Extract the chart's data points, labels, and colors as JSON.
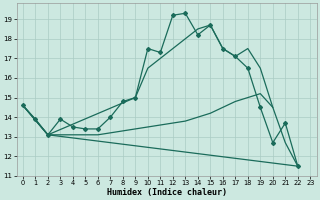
{
  "xlabel": "Humidex (Indice chaleur)",
  "background_color": "#cce8e0",
  "grid_color": "#aaccc4",
  "line_color": "#1a6b5a",
  "xlim": [
    -0.5,
    23.5
  ],
  "ylim": [
    11,
    19.8
  ],
  "xticks": [
    0,
    1,
    2,
    3,
    4,
    5,
    6,
    7,
    8,
    9,
    10,
    11,
    12,
    13,
    14,
    15,
    16,
    17,
    18,
    19,
    20,
    21,
    22,
    23
  ],
  "yticks": [
    11,
    12,
    13,
    14,
    15,
    16,
    17,
    18,
    19
  ],
  "series1_x": [
    0,
    1,
    2,
    3,
    4,
    5,
    6,
    7,
    8,
    9,
    10,
    11,
    12,
    13,
    14,
    15,
    16,
    17,
    18,
    19,
    20,
    21,
    22
  ],
  "series1_y": [
    14.6,
    13.9,
    13.1,
    13.9,
    13.5,
    13.4,
    13.4,
    14.0,
    14.8,
    15.0,
    17.5,
    17.3,
    19.2,
    19.3,
    18.2,
    18.7,
    17.5,
    17.1,
    16.5,
    14.5,
    12.7,
    13.7,
    11.5
  ],
  "series2_x": [
    0,
    2,
    22
  ],
  "series2_y": [
    14.6,
    13.1,
    11.5
  ],
  "series3_x": [
    0,
    2,
    9,
    10,
    11,
    12,
    13,
    14,
    15,
    16,
    17,
    18,
    19,
    20
  ],
  "series3_y": [
    14.6,
    13.1,
    15.0,
    16.5,
    17.0,
    17.5,
    18.0,
    18.5,
    18.7,
    17.5,
    17.1,
    17.5,
    16.5,
    14.5
  ],
  "series4_x": [
    0,
    2,
    3,
    4,
    5,
    6,
    7,
    8,
    9,
    10,
    11,
    12,
    13,
    14,
    15,
    16,
    17,
    18,
    19,
    20,
    21,
    22
  ],
  "series4_y": [
    14.6,
    13.1,
    13.1,
    13.1,
    13.1,
    13.1,
    13.2,
    13.3,
    13.4,
    13.5,
    13.6,
    13.7,
    13.8,
    14.0,
    14.2,
    14.5,
    14.8,
    15.0,
    15.2,
    14.5,
    12.7,
    11.5
  ]
}
